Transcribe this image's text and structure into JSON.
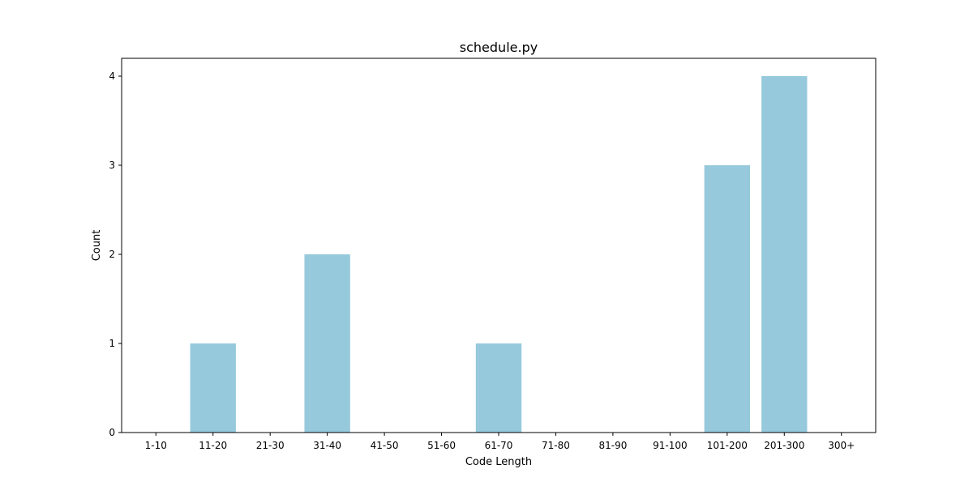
{
  "chart_data": {
    "type": "bar",
    "title": "schedule.py",
    "xlabel": "Code Length",
    "ylabel": "Count",
    "categories": [
      "1-10",
      "11-20",
      "21-30",
      "31-40",
      "41-50",
      "51-60",
      "61-70",
      "71-80",
      "81-90",
      "91-100",
      "101-200",
      "201-300",
      "300+"
    ],
    "values": [
      0,
      1,
      0,
      2,
      0,
      0,
      1,
      0,
      0,
      0,
      3,
      4,
      0
    ],
    "ylim": [
      0,
      4.2
    ],
    "yticks": [
      0,
      1,
      2,
      3,
      4
    ],
    "bar_color": "#96c9dc",
    "grid": false,
    "legend": false
  }
}
